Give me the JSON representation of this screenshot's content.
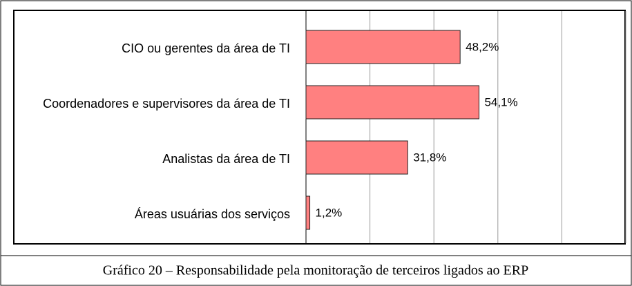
{
  "chart_data": {
    "type": "bar",
    "orientation": "horizontal",
    "categories": [
      "CIO ou gerentes da área de TI",
      "Coordenadores e supervisores da área de TI",
      "Analistas da área de TI",
      "Áreas usuárias dos serviços"
    ],
    "values": [
      48.2,
      54.1,
      31.8,
      1.2
    ],
    "value_labels": [
      "48,2%",
      "54,1%",
      "31,8%",
      "1,2%"
    ],
    "color": "#ff8080",
    "xlim": [
      0,
      100
    ],
    "xticks": [
      0,
      20,
      40,
      60,
      80,
      100
    ],
    "grid": true,
    "caption": "Gráfico 20 – Responsabilidade pela monitoração de terceiros ligados ao ERP"
  }
}
